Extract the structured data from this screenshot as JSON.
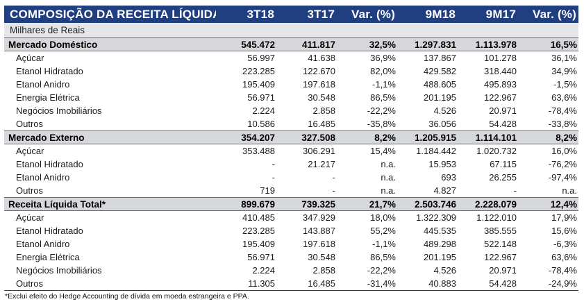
{
  "table": {
    "title": "COMPOSIÇÃO DA RECEITA LÍQUIDA",
    "columns": [
      "3T18",
      "3T17",
      "Var. (%)",
      "9M18",
      "9M17",
      "Var. (%)"
    ],
    "units": "Milhares de Reais",
    "sections": [
      {
        "label": "Mercado Doméstico",
        "values": [
          "545.472",
          "411.817",
          "32,5%",
          "1.297.831",
          "1.113.978",
          "16,5%"
        ],
        "rows": [
          {
            "label": "Açúcar",
            "values": [
              "56.997",
              "41.638",
              "36,9%",
              "137.867",
              "101.278",
              "36,1%"
            ]
          },
          {
            "label": "Etanol Hidratado",
            "values": [
              "223.285",
              "122.670",
              "82,0%",
              "429.582",
              "318.440",
              "34,9%"
            ]
          },
          {
            "label": "Etanol Anidro",
            "values": [
              "195.409",
              "197.618",
              "-1,1%",
              "488.605",
              "495.893",
              "-1,5%"
            ]
          },
          {
            "label": "Energia Elétrica",
            "values": [
              "56.971",
              "30.548",
              "86,5%",
              "201.195",
              "122.967",
              "63,6%"
            ]
          },
          {
            "label": "Negócios Imobiliários",
            "values": [
              "2.224",
              "2.858",
              "-22,2%",
              "4.526",
              "20.971",
              "-78,4%"
            ]
          },
          {
            "label": "Outros",
            "values": [
              "10.586",
              "16.485",
              "-35,8%",
              "36.056",
              "54.428",
              "-33,8%"
            ]
          }
        ]
      },
      {
        "label": "Mercado Externo",
        "values": [
          "354.207",
          "327.508",
          "8,2%",
          "1.205.915",
          "1.114.101",
          "8,2%"
        ],
        "rows": [
          {
            "label": "Açúcar",
            "values": [
              "353.488",
              "306.291",
              "15,4%",
              "1.184.442",
              "1.020.732",
              "16,0%"
            ]
          },
          {
            "label": "Etanol Hidratado",
            "values": [
              "-",
              "21.217",
              "n.a.",
              "15.953",
              "67.115",
              "-76,2%"
            ]
          },
          {
            "label": "Etanol Anidro",
            "values": [
              "-",
              "-",
              "n.a.",
              "693",
              "26.255",
              "-97,4%"
            ]
          },
          {
            "label": "Outros",
            "values": [
              "719",
              "-",
              "n.a.",
              "4.827",
              "-",
              "n.a."
            ]
          }
        ]
      },
      {
        "label": "Receita Líquida Total*",
        "values": [
          "899.679",
          "739.325",
          "21,7%",
          "2.503.746",
          "2.228.079",
          "12,4%"
        ],
        "rows": [
          {
            "label": "Açúcar",
            "values": [
              "410.485",
              "347.929",
              "18,0%",
              "1.322.309",
              "1.122.010",
              "17,9%"
            ]
          },
          {
            "label": "Etanol Hidratado",
            "values": [
              "223.285",
              "143.887",
              "55,2%",
              "445.535",
              "385.555",
              "15,6%"
            ]
          },
          {
            "label": "Etanol Anidro",
            "values": [
              "195.409",
              "197.618",
              "-1,1%",
              "489.298",
              "522.148",
              "-6,3%"
            ]
          },
          {
            "label": "Energia Elétrica",
            "values": [
              "56.971",
              "30.548",
              "86,5%",
              "201.195",
              "122.967",
              "63,6%"
            ]
          },
          {
            "label": "Negócios Imobiliários",
            "values": [
              "2.224",
              "2.858",
              "-22,2%",
              "4.526",
              "20.971",
              "-78,4%"
            ]
          },
          {
            "label": "Outros",
            "values": [
              "11.305",
              "16.485",
              "-31,4%",
              "40.883",
              "54.428",
              "-24,9%"
            ]
          }
        ]
      }
    ],
    "footnote": "*Exclui efeito do Hedge Accounting de dívida em moeda estrangeira e PPA."
  },
  "colors": {
    "header_bg": "#1f3f80",
    "header_text": "#ffffff",
    "section_bg": "#d6d8dc",
    "units_bg": "#e4e6ea"
  }
}
